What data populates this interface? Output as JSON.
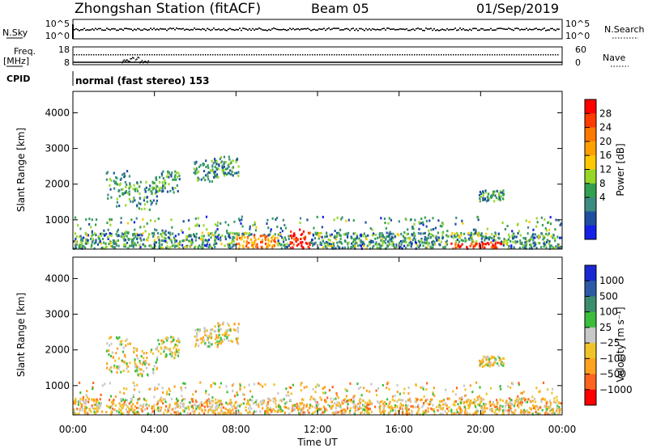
{
  "header": {
    "station": "Zhongshan Station (fitACF)",
    "beam": "Beam 05",
    "date": "01/Sep/2019"
  },
  "top_panels": {
    "nsky_label": "N.Sky",
    "nsearch_label": "N.Search",
    "noise_ticks_left": [
      "10^5",
      "10^0"
    ],
    "noise_ticks_right": [
      "10^5",
      "10^0"
    ],
    "freq_label_1": "Freq.",
    "freq_label_2": "[MHz]",
    "freq_ticks": [
      "18",
      "8"
    ],
    "nave_ticks": [
      "60",
      "0"
    ],
    "nave_label": "Nave",
    "cpid_label": "CPID",
    "cpid_text": "normal (fast stereo) 153"
  },
  "time_axis": {
    "ticks": [
      "00:00",
      "04:00",
      "08:00",
      "12:00",
      "16:00",
      "20:00",
      "00:00"
    ],
    "label": "Time UT"
  },
  "chart_data": [
    {
      "type": "heatmap",
      "quantity": "Power",
      "ylabel": "Slant Range [km]",
      "yticks": [
        1000,
        2000,
        3000,
        4000
      ],
      "ylim": [
        180,
        4600
      ],
      "xlim_hours": [
        0,
        24
      ],
      "colorbar_label": "Power [dB]",
      "colorbar_ticks": [
        "28",
        "24",
        "20",
        "16",
        "12",
        "8",
        "4"
      ],
      "colorbar_colors": [
        "#ff0000",
        "#ff3c00",
        "#ff7800",
        "#ffa000",
        "#ffc800",
        "#96d728",
        "#32a050",
        "#3c8c82",
        "#1e50a0",
        "#1420e6"
      ]
    },
    {
      "type": "heatmap",
      "quantity": "Velocity",
      "ylabel": "Slant Range [km]",
      "yticks": [
        1000,
        2000,
        3000,
        4000
      ],
      "ylim": [
        180,
        4600
      ],
      "xlim_hours": [
        0,
        24
      ],
      "colorbar_label": "Velocity [m s⁻¹]",
      "colorbar_ticks": [
        "1000",
        "500",
        "100",
        "25",
        "−25",
        "−100",
        "−500",
        "−1000"
      ],
      "colorbar_colors": [
        "#1a28d2",
        "#2d5aa5",
        "#3c8c6e",
        "#3cbe3c",
        "#c8c8c8",
        "#f0c328",
        "#ffa01e",
        "#ff641e",
        "#ff0000"
      ]
    }
  ]
}
